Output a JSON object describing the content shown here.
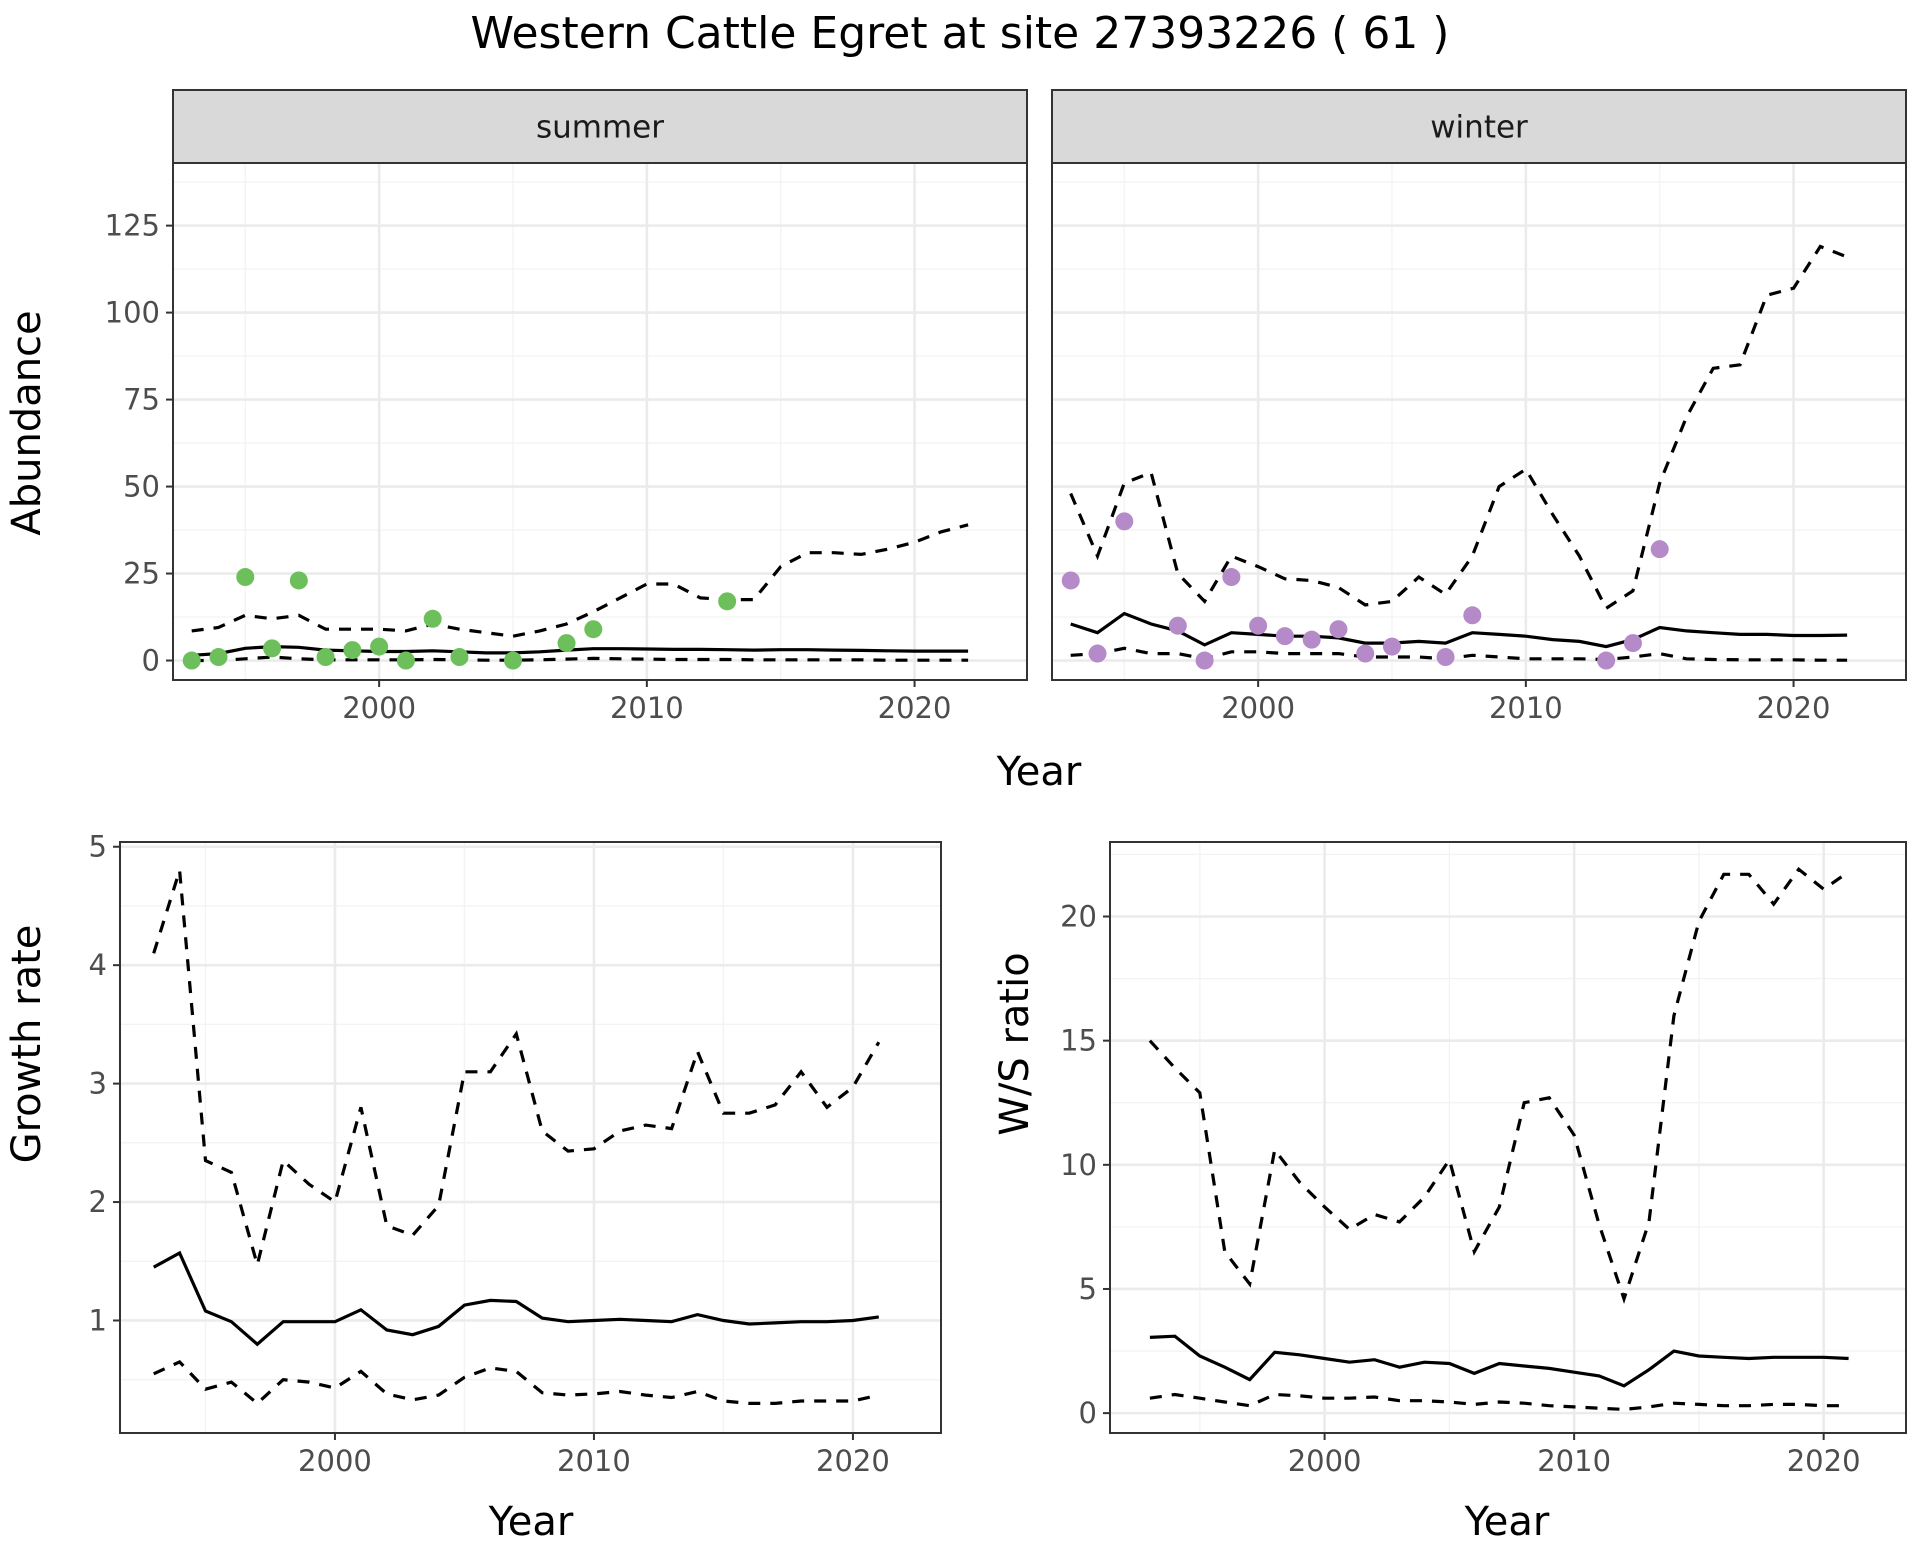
{
  "title": "Western Cattle Egret at site 27393226 ( 61 )",
  "chart_data": [
    {
      "id": "abundance_summer",
      "type": "line",
      "facet_label": "summer",
      "xlabel": "Year",
      "ylabel": "Abundance",
      "xlim": [
        1992.3,
        2024.2
      ],
      "ylim": [
        -5.6,
        143
      ],
      "xticks": [
        2000,
        2010,
        2020
      ],
      "yticks": [
        0,
        25,
        50,
        75,
        100,
        125
      ],
      "grid": true,
      "point_color": "#6dbf5b",
      "observed": {
        "x": [
          1993,
          1994,
          1995,
          1996,
          1997,
          1998,
          1999,
          2000,
          2001,
          2002,
          2003,
          2005,
          2007,
          2008,
          2013
        ],
        "y": [
          0,
          1,
          24,
          3.5,
          23,
          1,
          3,
          4,
          0,
          12,
          1,
          0,
          5,
          9,
          17
        ]
      },
      "series": [
        {
          "role": "estimate",
          "x": [
            1993,
            1994,
            1995,
            1996,
            1997,
            1998,
            1999,
            2000,
            2001,
            2002,
            2003,
            2004,
            2005,
            2006,
            2007,
            2008,
            2009,
            2010,
            2011,
            2012,
            2013,
            2014,
            2015,
            2016,
            2017,
            2018,
            2019,
            2020,
            2021,
            2022
          ],
          "y": [
            1.5,
            2,
            3.5,
            4,
            3.8,
            3,
            2.8,
            2.6,
            2.6,
            2.8,
            2.5,
            2.2,
            2.2,
            2.5,
            3,
            3.4,
            3.4,
            3.3,
            3.2,
            3.2,
            3.1,
            3,
            3.1,
            3.1,
            3,
            2.9,
            2.8,
            2.7,
            2.7,
            2.7
          ]
        },
        {
          "role": "upper",
          "x": [
            1993,
            1994,
            1995,
            1996,
            1997,
            1998,
            1999,
            2000,
            2001,
            2002,
            2003,
            2004,
            2005,
            2006,
            2007,
            2008,
            2009,
            2010,
            2011,
            2012,
            2013,
            2014,
            2015,
            2016,
            2017,
            2018,
            2019,
            2020,
            2021,
            2022
          ],
          "y": [
            8.5,
            9.5,
            13,
            12,
            13,
            9,
            9,
            9,
            8.5,
            10.5,
            9,
            8,
            7,
            8.5,
            10.5,
            14,
            18,
            22,
            22,
            18,
            17.5,
            17.5,
            27,
            31,
            31,
            30.5,
            32,
            34,
            37,
            39
          ]
        },
        {
          "role": "lower",
          "x": [
            1993,
            1994,
            1995,
            1996,
            1997,
            1998,
            1999,
            2000,
            2001,
            2002,
            2003,
            2004,
            2005,
            2006,
            2007,
            2008,
            2009,
            2010,
            2011,
            2012,
            2013,
            2014,
            2015,
            2016,
            2017,
            2018,
            2019,
            2020,
            2021,
            2022
          ],
          "y": [
            0,
            0,
            0.5,
            1,
            0.5,
            0.2,
            0.2,
            0.2,
            0.2,
            0.3,
            0.2,
            0.1,
            0.1,
            0.2,
            0.4,
            0.6,
            0.5,
            0.4,
            0.3,
            0.3,
            0.3,
            0.2,
            0.2,
            0.2,
            0.2,
            0.2,
            0.1,
            0.1,
            0.1,
            0.1
          ]
        }
      ]
    },
    {
      "id": "abundance_winter",
      "type": "line",
      "facet_label": "winter",
      "xlabel": "Year",
      "ylabel": "Abundance",
      "xlim": [
        1992.3,
        2024.2
      ],
      "ylim": [
        -5.6,
        143
      ],
      "xticks": [
        2000,
        2010,
        2020
      ],
      "yticks": [
        0,
        25,
        50,
        75,
        100,
        125
      ],
      "grid": true,
      "point_color": "#b48ac8",
      "observed": {
        "x": [
          1993,
          1994,
          1995,
          1997,
          1998,
          1999,
          2000,
          2001,
          2002,
          2003,
          2004,
          2005,
          2007,
          2008,
          2013,
          2014,
          2015
        ],
        "y": [
          23,
          2,
          40,
          10,
          0,
          24,
          10,
          7,
          6,
          9,
          2,
          4,
          1,
          13,
          0,
          5,
          32
        ]
      },
      "series": [
        {
          "role": "estimate",
          "x": [
            1993,
            1994,
            1995,
            1996,
            1997,
            1998,
            1999,
            2000,
            2001,
            2002,
            2003,
            2004,
            2005,
            2006,
            2007,
            2008,
            2009,
            2010,
            2011,
            2012,
            2013,
            2014,
            2015,
            2016,
            2017,
            2018,
            2019,
            2020,
            2021,
            2022
          ],
          "y": [
            10.5,
            8,
            13.5,
            10.5,
            8.5,
            4.5,
            8,
            7.5,
            7,
            7,
            6.5,
            5,
            5,
            5.5,
            5,
            8,
            7.5,
            7,
            6,
            5.5,
            4,
            6,
            9.5,
            8.5,
            8,
            7.5,
            7.5,
            7.2,
            7.2,
            7.3
          ]
        },
        {
          "role": "upper",
          "x": [
            1993,
            1994,
            1995,
            1996,
            1997,
            1998,
            1999,
            2000,
            2001,
            2002,
            2003,
            2004,
            2005,
            2006,
            2007,
            2008,
            2009,
            2010,
            2011,
            2012,
            2013,
            2014,
            2015,
            2016,
            2017,
            2018,
            2019,
            2020,
            2021,
            2022
          ],
          "y": [
            48,
            30,
            51,
            54,
            25,
            17,
            30,
            27,
            23.5,
            23,
            21,
            16,
            17,
            24,
            19,
            30,
            50,
            55,
            42,
            30,
            15,
            20,
            51,
            70,
            84,
            85,
            105,
            107,
            119,
            116
          ]
        },
        {
          "role": "lower",
          "x": [
            1993,
            1994,
            1995,
            1996,
            1997,
            1998,
            1999,
            2000,
            2001,
            2002,
            2003,
            2004,
            2005,
            2006,
            2007,
            2008,
            2009,
            2010,
            2011,
            2012,
            2013,
            2014,
            2015,
            2016,
            2017,
            2018,
            2019,
            2020,
            2021,
            2022
          ],
          "y": [
            1.5,
            2,
            3.5,
            2,
            2,
            0.5,
            2.5,
            2.5,
            2,
            2,
            2,
            1,
            1,
            1,
            0.5,
            1.5,
            1,
            0.5,
            0.5,
            0.5,
            0.3,
            1,
            2,
            0.5,
            0.3,
            0.2,
            0.2,
            0.2,
            0.1,
            0.1
          ]
        }
      ]
    },
    {
      "id": "growth_rate",
      "type": "line",
      "xlabel": "Year",
      "ylabel": "Growth rate",
      "xlim": [
        1991.7,
        2023.4
      ],
      "ylim": [
        0.05,
        5.04
      ],
      "xticks": [
        2000,
        2010,
        2020
      ],
      "yticks": [
        1,
        2,
        3,
        4,
        5
      ],
      "grid": true,
      "series": [
        {
          "role": "estimate",
          "x": [
            1993,
            1994,
            1995,
            1996,
            1997,
            1998,
            1999,
            2000,
            2001,
            2002,
            2003,
            2004,
            2005,
            2006,
            2007,
            2008,
            2009,
            2010,
            2011,
            2012,
            2013,
            2014,
            2015,
            2016,
            2017,
            2018,
            2019,
            2020,
            2021
          ],
          "y": [
            1.45,
            1.57,
            1.08,
            0.99,
            0.8,
            0.99,
            0.99,
            0.99,
            1.09,
            0.92,
            0.88,
            0.95,
            1.13,
            1.17,
            1.16,
            1.02,
            0.99,
            1.0,
            1.01,
            1.0,
            0.99,
            1.05,
            1.0,
            0.97,
            0.98,
            0.99,
            0.99,
            1.0,
            1.03
          ]
        },
        {
          "role": "upper",
          "x": [
            1993,
            1994,
            1995,
            1996,
            1997,
            1998,
            1999,
            2000,
            2001,
            2002,
            2003,
            2004,
            2005,
            2006,
            2007,
            2008,
            2009,
            2010,
            2011,
            2012,
            2013,
            2014,
            2015,
            2016,
            2017,
            2018,
            2019,
            2020,
            2021
          ],
          "y": [
            4.1,
            4.8,
            2.35,
            2.25,
            1.47,
            2.35,
            2.15,
            2.0,
            2.8,
            1.8,
            1.72,
            1.97,
            3.1,
            3.1,
            3.42,
            2.6,
            2.43,
            2.45,
            2.6,
            2.65,
            2.62,
            3.27,
            2.75,
            2.75,
            2.82,
            3.1,
            2.8,
            2.97,
            3.35
          ]
        },
        {
          "role": "lower",
          "x": [
            1993,
            1994,
            1995,
            1996,
            1997,
            1998,
            1999,
            2000,
            2001,
            2002,
            2003,
            2004,
            2005,
            2006,
            2007,
            2008,
            2009,
            2010,
            2011,
            2012,
            2013,
            2014,
            2015,
            2016,
            2017,
            2018,
            2019,
            2020,
            2021
          ],
          "y": [
            0.55,
            0.65,
            0.42,
            0.48,
            0.3,
            0.5,
            0.48,
            0.43,
            0.57,
            0.38,
            0.33,
            0.37,
            0.52,
            0.6,
            0.57,
            0.39,
            0.37,
            0.38,
            0.4,
            0.37,
            0.35,
            0.4,
            0.32,
            0.3,
            0.3,
            0.32,
            0.32,
            0.32,
            0.37
          ]
        }
      ]
    },
    {
      "id": "ws_ratio",
      "type": "line",
      "xlabel": "Year",
      "ylabel": "W/S ratio",
      "xlim": [
        1991.4,
        2023.3
      ],
      "ylim": [
        -0.8,
        23
      ],
      "xticks": [
        2000,
        2010,
        2020
      ],
      "yticks": [
        0,
        5,
        10,
        15,
        20
      ],
      "grid": true,
      "series": [
        {
          "role": "estimate",
          "x": [
            1993,
            1994,
            1995,
            1996,
            1997,
            1998,
            1999,
            2000,
            2001,
            2002,
            2003,
            2004,
            2005,
            2006,
            2007,
            2008,
            2009,
            2010,
            2011,
            2012,
            2013,
            2014,
            2015,
            2016,
            2017,
            2018,
            2019,
            2020,
            2021
          ],
          "y": [
            3.05,
            3.1,
            2.3,
            1.85,
            1.35,
            2.45,
            2.35,
            2.2,
            2.05,
            2.15,
            1.85,
            2.05,
            2.0,
            1.6,
            2.0,
            1.9,
            1.8,
            1.65,
            1.5,
            1.1,
            1.75,
            2.5,
            2.3,
            2.25,
            2.2,
            2.25,
            2.25,
            2.25,
            2.2
          ]
        },
        {
          "role": "upper",
          "x": [
            1993,
            1994,
            1995,
            1996,
            1997,
            1998,
            1999,
            2000,
            2001,
            2002,
            2003,
            2004,
            2005,
            2006,
            2007,
            2008,
            2009,
            2010,
            2011,
            2012,
            2013,
            2014,
            2015,
            2016,
            2017,
            2018,
            2019,
            2020,
            2021
          ],
          "y": [
            15,
            13.9,
            12.9,
            6.5,
            5.2,
            10.6,
            9.3,
            8.3,
            7.4,
            8.0,
            7.7,
            8.7,
            10.2,
            6.5,
            8.3,
            12.5,
            12.7,
            11.2,
            7.6,
            4.6,
            7.7,
            16,
            19.8,
            21.7,
            21.7,
            20.5,
            21.9,
            21.1,
            21.8
          ]
        },
        {
          "role": "lower",
          "x": [
            1993,
            1994,
            1995,
            1996,
            1997,
            1998,
            1999,
            2000,
            2001,
            2002,
            2003,
            2004,
            2005,
            2006,
            2007,
            2008,
            2009,
            2010,
            2011,
            2012,
            2013,
            2014,
            2015,
            2016,
            2017,
            2018,
            2019,
            2020,
            2021
          ],
          "y": [
            0.6,
            0.75,
            0.6,
            0.45,
            0.3,
            0.75,
            0.7,
            0.6,
            0.6,
            0.65,
            0.5,
            0.5,
            0.45,
            0.35,
            0.45,
            0.4,
            0.3,
            0.25,
            0.2,
            0.15,
            0.25,
            0.4,
            0.35,
            0.3,
            0.3,
            0.35,
            0.35,
            0.3,
            0.3
          ]
        }
      ]
    }
  ]
}
